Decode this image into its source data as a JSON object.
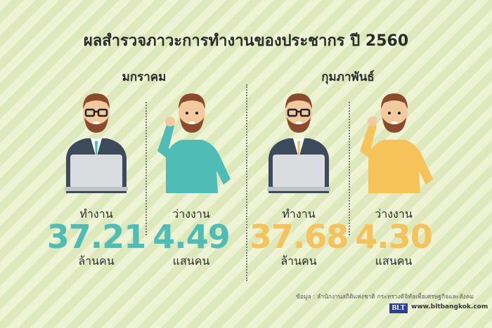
{
  "title": "ผลสำรวจภาวะการทำงานของประชากร ปี 2560",
  "months": [
    {
      "name": "มกราคม",
      "employed": {
        "label": "ทำงาน",
        "value": "37.21",
        "unit": "ล้านคน"
      },
      "unemployed": {
        "label": "ว่างงาน",
        "value": "4.49",
        "unit": "แสนคน"
      },
      "color": "#4fbdb5"
    },
    {
      "name": "กุมภาพันธ์",
      "employed": {
        "label": "ทำงาน",
        "value": "37.68",
        "unit": "ล้านคน"
      },
      "unemployed": {
        "label": "ว่างงาน",
        "value": "4.30",
        "unit": "แสนคน"
      },
      "color": "#f5c35a"
    }
  ],
  "source": "ข้อมูล : สำนักงานสถิติแห่งชาติ กระทรวงดิจิทัลเพื่อเศรษฐกิจและสังคม",
  "logo": "BLT",
  "url": "www.bltbangkok.com",
  "colors": {
    "skin": "#f3c9a0",
    "hair": "#8a4a2b",
    "suit": "#3c4a5c",
    "laptop": "#d9dde0"
  }
}
